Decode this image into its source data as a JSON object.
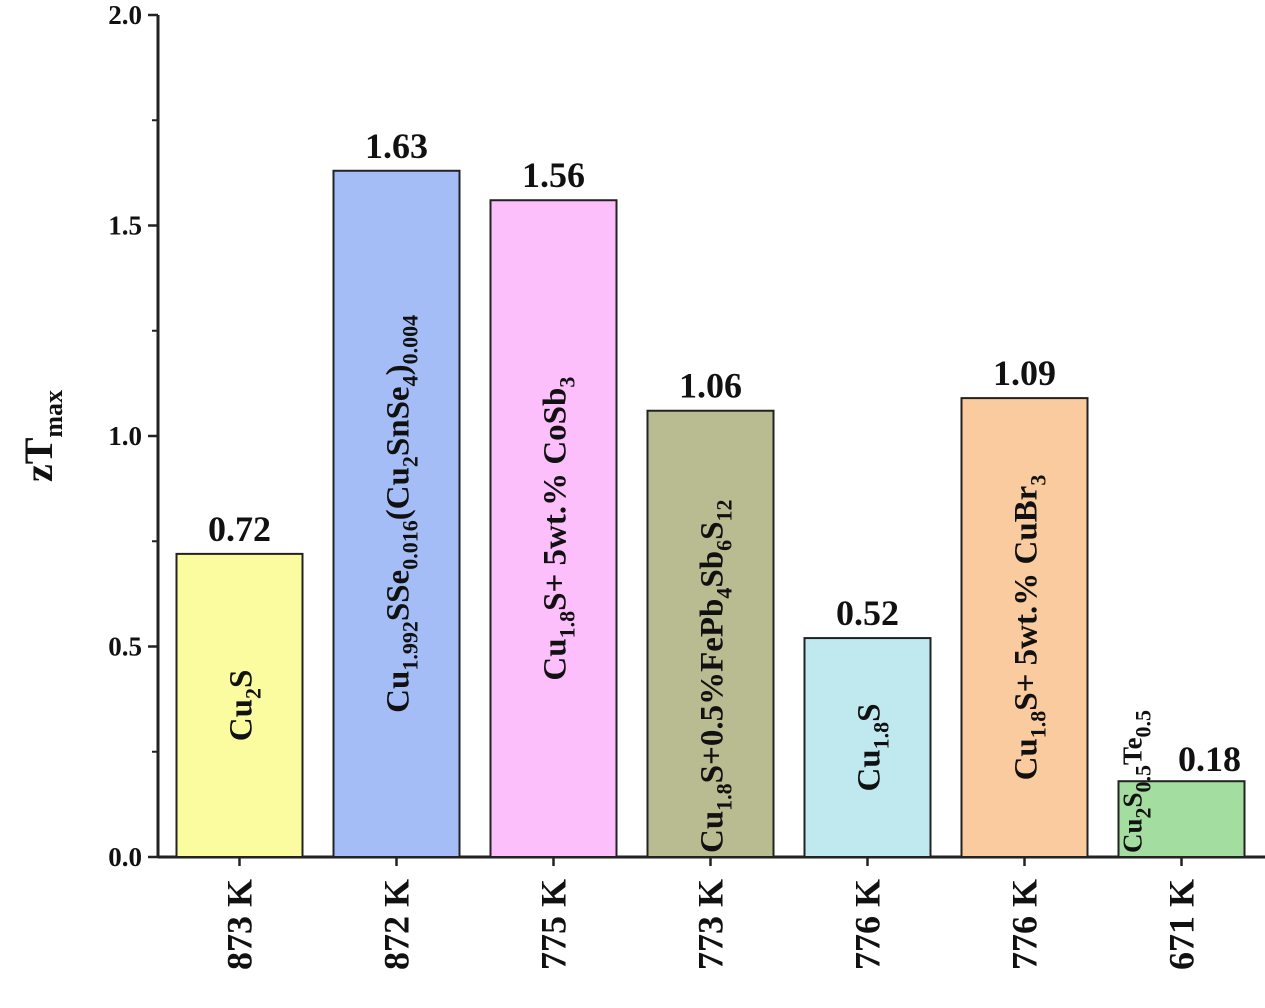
{
  "chart_data": {
    "type": "bar",
    "ylabel": {
      "main": "zT",
      "sub": "max"
    },
    "ylim": [
      0,
      2.0
    ],
    "yticks": [
      "0.0",
      "0.5",
      "1.0",
      "1.5",
      "2.0"
    ],
    "categories": [
      "873 K",
      "872 K",
      "775 K",
      "773 K",
      "776 K",
      "776 K",
      "671 K"
    ],
    "values": [
      0.72,
      1.63,
      1.56,
      1.06,
      0.52,
      1.09,
      0.18
    ],
    "value_labels": [
      "0.72",
      "1.63",
      "1.56",
      "1.06",
      "0.52",
      "1.09",
      "0.18"
    ],
    "bar_colors": [
      "#FBFCA0",
      "#A5BDF6",
      "#FCBFFC",
      "#B9BC91",
      "#BFE9EF",
      "#FACB9F",
      "#A4DDA0"
    ],
    "materials": [
      [
        [
          "Cu",
          ""
        ],
        [
          "2",
          "sub"
        ],
        [
          "S",
          ""
        ]
      ],
      [
        [
          "Cu",
          ""
        ],
        [
          "1.992",
          "sub"
        ],
        [
          "SSe",
          ""
        ],
        [
          "0.016",
          "sub"
        ],
        [
          "(Cu",
          ""
        ],
        [
          "2",
          "sub"
        ],
        [
          "SnSe",
          ""
        ],
        [
          "4",
          "sub"
        ],
        [
          ")",
          ""
        ],
        [
          "0.004",
          "sub"
        ]
      ],
      [
        [
          "Cu",
          ""
        ],
        [
          "1.8",
          "sub"
        ],
        [
          "S+ 5wt.% CoSb",
          ""
        ],
        [
          "3",
          "sub"
        ]
      ],
      [
        [
          "Cu",
          ""
        ],
        [
          "1.8",
          "sub"
        ],
        [
          "S+0.5%FePb",
          ""
        ],
        [
          "4",
          "sub"
        ],
        [
          "Sb",
          ""
        ],
        [
          "6",
          "sub"
        ],
        [
          "S",
          ""
        ],
        [
          "12",
          "sub"
        ]
      ],
      [
        [
          "Cu",
          ""
        ],
        [
          "1.8",
          "sub"
        ],
        [
          "S",
          ""
        ]
      ],
      [
        [
          "Cu",
          ""
        ],
        [
          "1.8",
          "sub"
        ],
        [
          "S+ 5wt.% CuBr",
          ""
        ],
        [
          "3",
          "sub"
        ]
      ],
      [
        [
          "Cu",
          ""
        ],
        [
          "2",
          "sub"
        ],
        [
          "S",
          ""
        ],
        [
          "0.5",
          "sub"
        ],
        [
          "Te",
          ""
        ],
        [
          "0.5",
          "sub"
        ]
      ]
    ]
  }
}
